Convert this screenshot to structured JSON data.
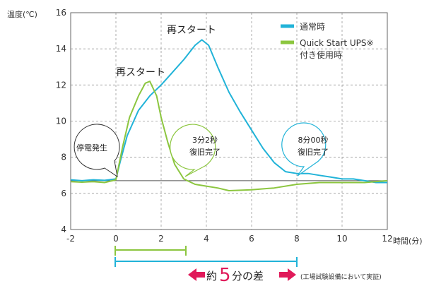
{
  "chart_data": {
    "type": "line",
    "ylabel": "温度(℃)",
    "xlabel": "時間(分)",
    "xlim": [
      -2,
      12
    ],
    "ylim": [
      4,
      16
    ],
    "xticks": [
      -2,
      0,
      2,
      4,
      6,
      8,
      10,
      12
    ],
    "yticks": [
      4,
      6,
      8,
      10,
      12,
      14,
      16
    ],
    "ref_y": 6.7,
    "legend_position": "top-right",
    "series": [
      {
        "name": "通常時",
        "color": "#21b3d8",
        "points": [
          [
            -2,
            6.75
          ],
          [
            -1.5,
            6.7
          ],
          [
            -1,
            6.75
          ],
          [
            -0.5,
            6.72
          ],
          [
            0,
            6.8
          ],
          [
            0.2,
            7.8
          ],
          [
            0.5,
            9.2
          ],
          [
            1,
            10.6
          ],
          [
            1.5,
            11.4
          ],
          [
            2,
            12.0
          ],
          [
            2.5,
            12.7
          ],
          [
            3,
            13.4
          ],
          [
            3.5,
            14.2
          ],
          [
            3.8,
            14.5
          ],
          [
            4.1,
            14.2
          ],
          [
            4.5,
            13.0
          ],
          [
            5,
            11.6
          ],
          [
            5.5,
            10.5
          ],
          [
            6,
            9.5
          ],
          [
            6.5,
            8.5
          ],
          [
            7,
            7.7
          ],
          [
            7.5,
            7.2
          ],
          [
            8,
            7.1
          ],
          [
            8.5,
            7.1
          ],
          [
            9,
            7.0
          ],
          [
            9.5,
            6.9
          ],
          [
            10,
            6.8
          ],
          [
            10.5,
            6.8
          ],
          [
            11,
            6.7
          ],
          [
            11.5,
            6.6
          ],
          [
            12,
            6.6
          ],
          [
            12.2,
            6.7
          ]
        ]
      },
      {
        "name": "Quick Start UPS※ 付き使用時",
        "color": "#8cc63f",
        "points": [
          [
            -2,
            6.65
          ],
          [
            -1.5,
            6.62
          ],
          [
            -1,
            6.65
          ],
          [
            -0.5,
            6.6
          ],
          [
            0,
            6.75
          ],
          [
            0.3,
            8.6
          ],
          [
            0.6,
            10.2
          ],
          [
            1,
            11.4
          ],
          [
            1.3,
            12.1
          ],
          [
            1.5,
            12.2
          ],
          [
            1.8,
            11.4
          ],
          [
            2,
            10.2
          ],
          [
            2.3,
            8.8
          ],
          [
            2.6,
            7.6
          ],
          [
            3,
            6.8
          ],
          [
            3.5,
            6.5
          ],
          [
            4,
            6.4
          ],
          [
            4.5,
            6.3
          ],
          [
            5,
            6.15
          ],
          [
            6,
            6.2
          ],
          [
            7,
            6.3
          ],
          [
            8,
            6.5
          ],
          [
            9,
            6.6
          ],
          [
            10,
            6.6
          ],
          [
            11,
            6.6
          ],
          [
            12,
            6.7
          ],
          [
            12.2,
            6.7
          ]
        ]
      }
    ],
    "legend": [
      "通常時",
      "Quick Start UPS※",
      "付き使用時"
    ],
    "annotations": {
      "restart": "再スタート",
      "outage": "停電発生",
      "recover_green_time": "3分2秒",
      "recover_blue_time": "8分00秒",
      "recover_label": "復旧完了",
      "difference_prefix": "約",
      "difference_number": "5",
      "difference_suffix": "分の差",
      "note": "(工場試験設備において実証)"
    }
  }
}
